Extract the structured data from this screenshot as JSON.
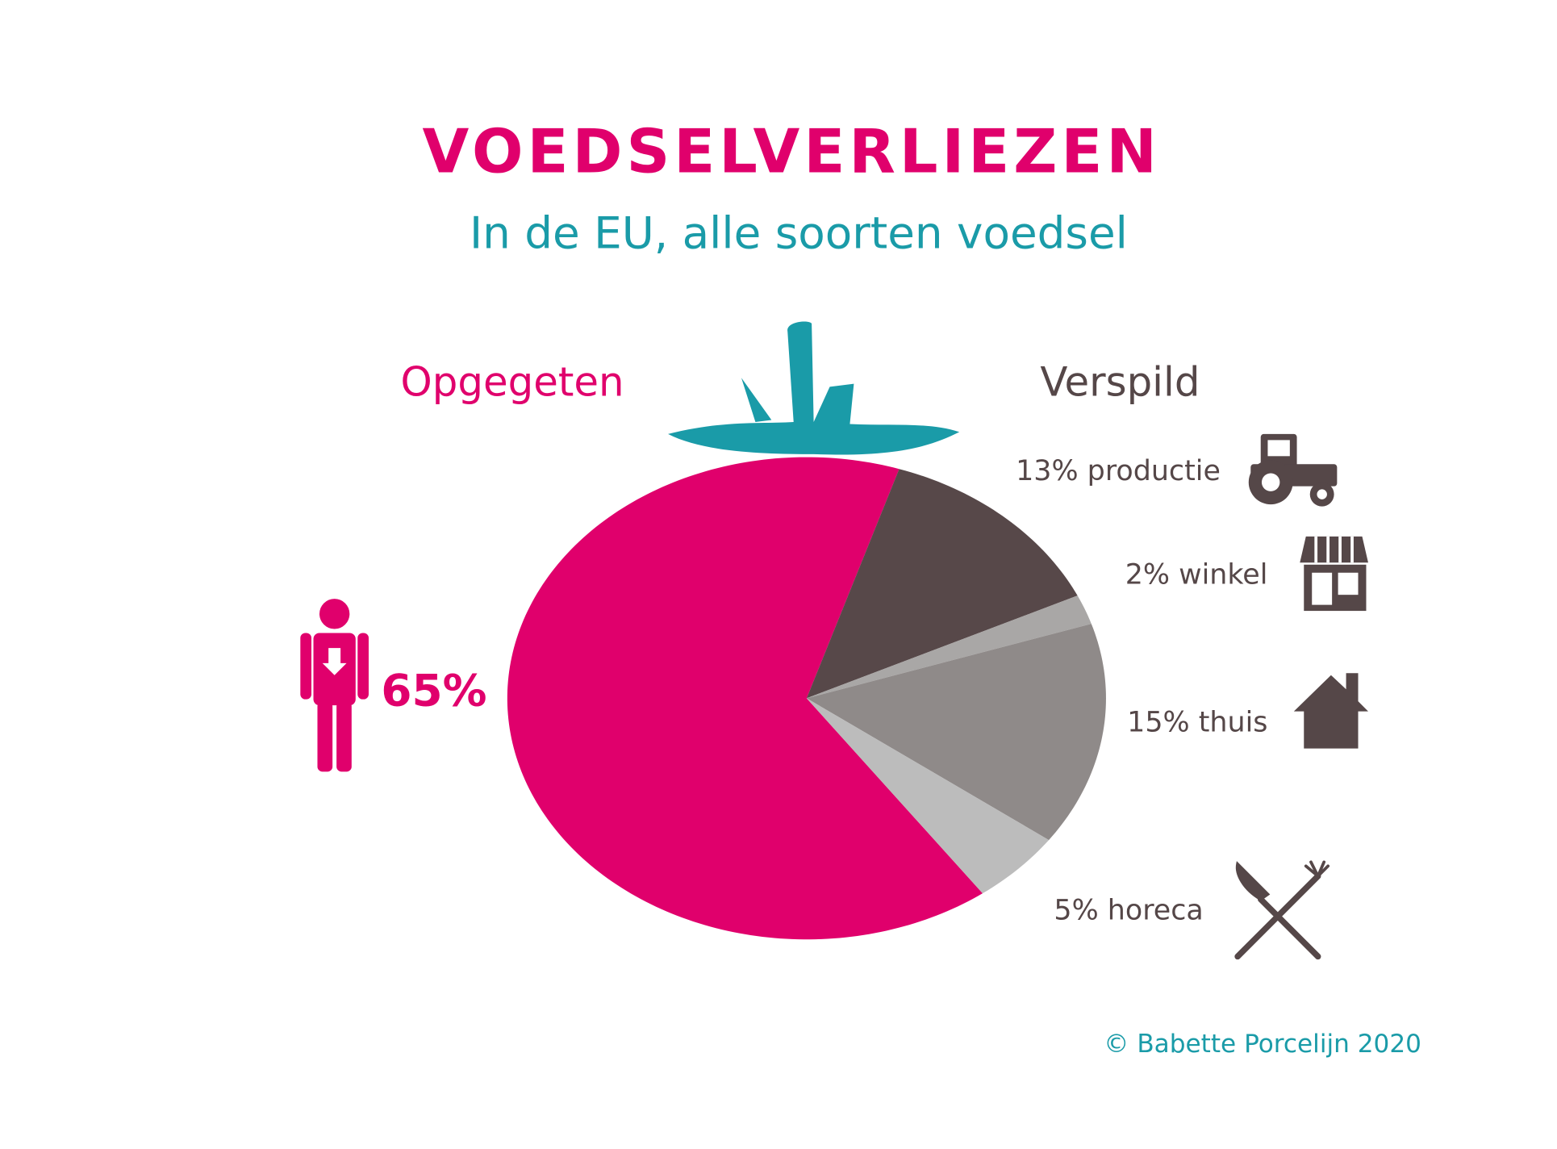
{
  "chart_data": {
    "type": "pie",
    "title": "VOEDSELVERLIEZEN",
    "subtitle": "In de EU, alle soorten voedsel",
    "group_labels": [
      "Opgegeten",
      "Verspild"
    ],
    "values": [
      65,
      13,
      2,
      15,
      5
    ],
    "value_labels": [
      "65%",
      "13% productie",
      "2% winkel",
      "15% thuis",
      "5% horeca"
    ],
    "colors": [
      "#e0006c",
      "#574849",
      "#a9a7a6",
      "#8f8a89",
      "#bcbcbc"
    ],
    "credit": "© Babette Porcelijn 2020"
  }
}
